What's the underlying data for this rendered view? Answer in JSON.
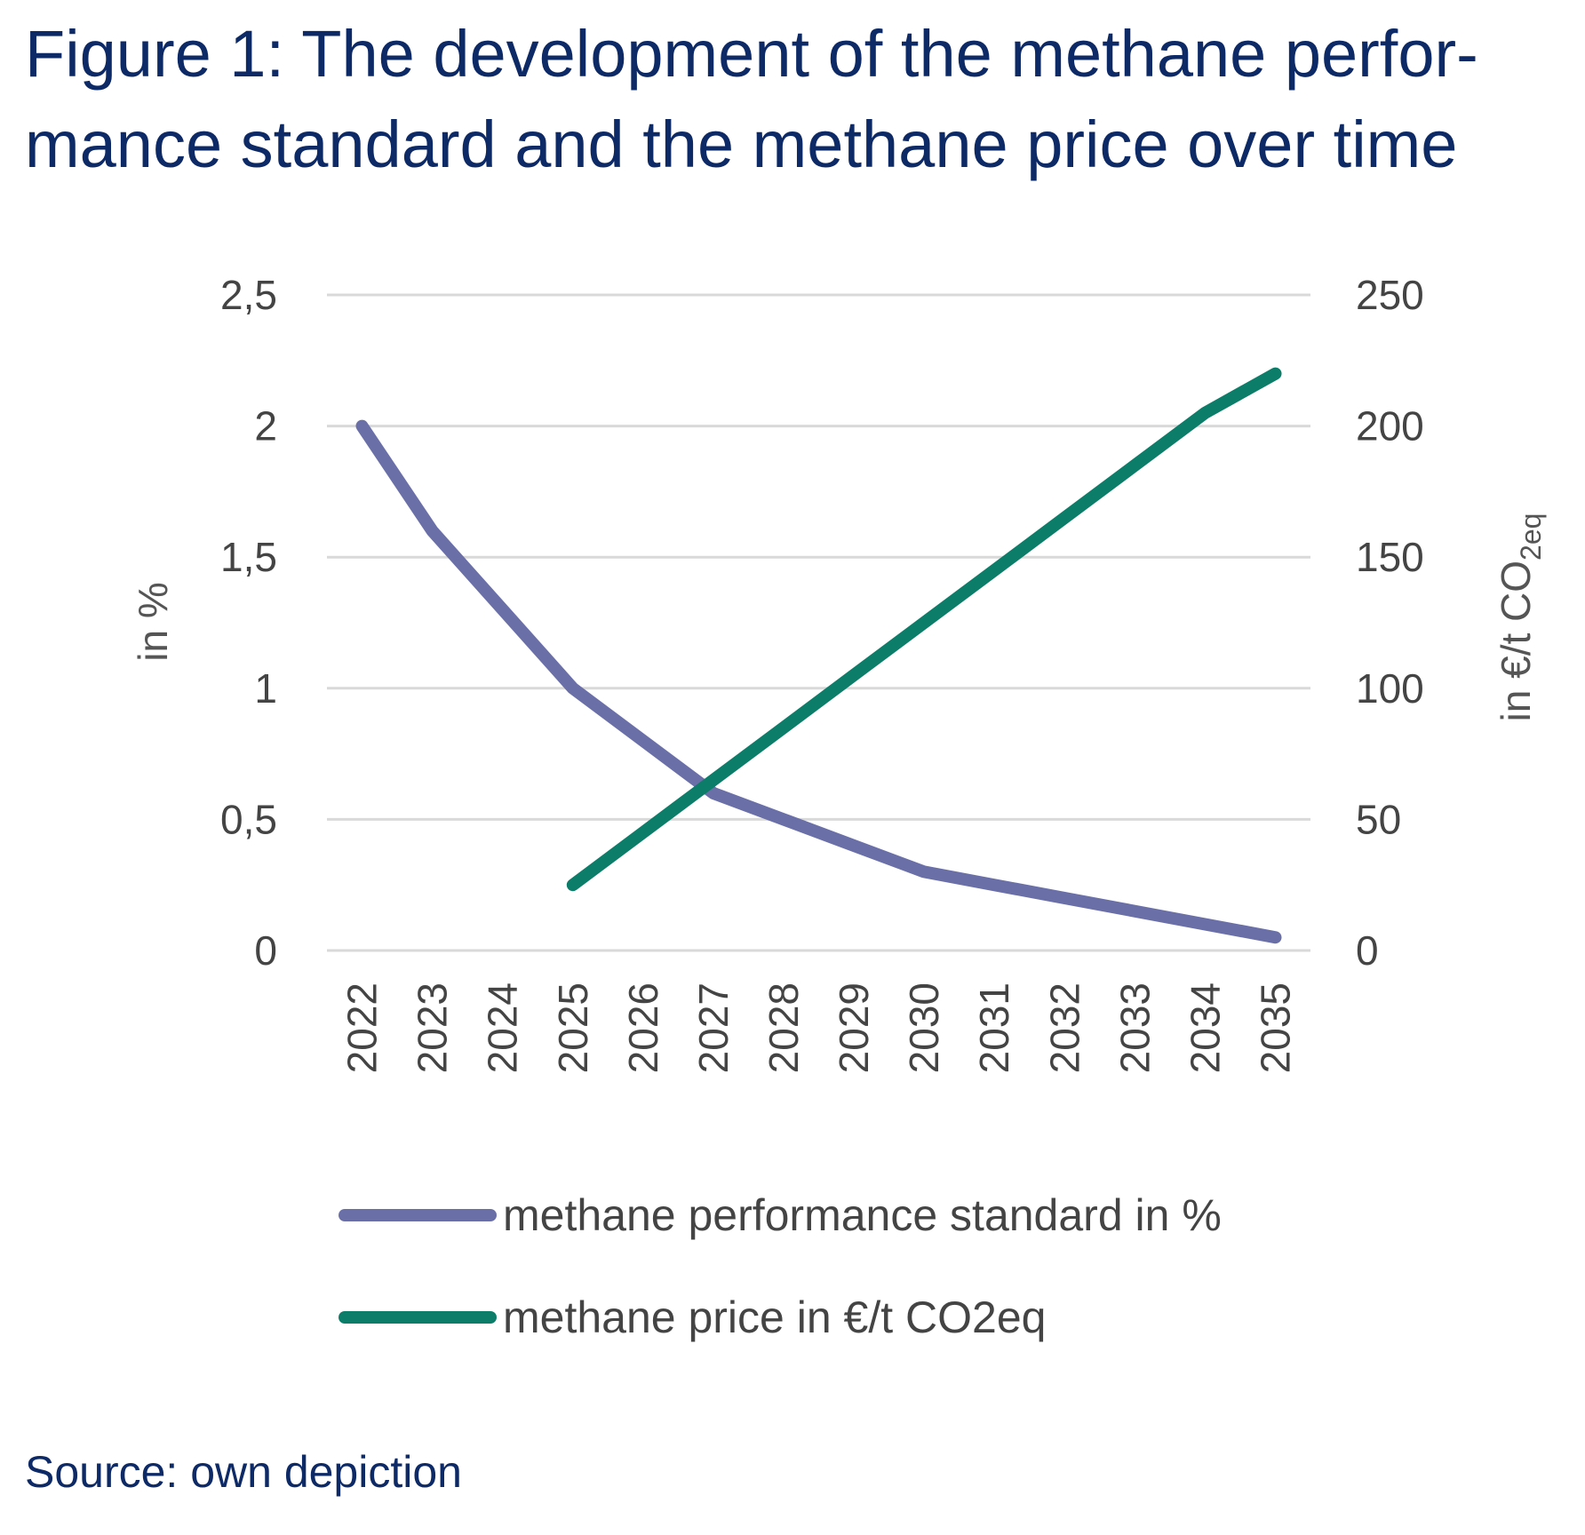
{
  "figure": {
    "title_line1": "Figure 1: The development of the methane perfor-",
    "title_line2": "mance standard and the methane price over time",
    "source": "Source: own depiction"
  },
  "chart_data": {
    "type": "line",
    "x": [
      "2022",
      "2023",
      "2024",
      "2025",
      "2026",
      "2027",
      "2028",
      "2029",
      "2030",
      "2031",
      "2032",
      "2033",
      "2034",
      "2035"
    ],
    "series": [
      {
        "name": "methane performance standard in %",
        "axis": "left",
        "color": "#6a6fa8",
        "values": [
          2.0,
          1.6,
          1.3,
          1.0,
          0.8,
          0.6,
          0.5,
          0.4,
          0.3,
          0.25,
          0.2,
          0.15,
          0.1,
          0.05
        ]
      },
      {
        "name": "methane price in €/t CO2eq",
        "axis": "right",
        "color": "#0b7d68",
        "values": [
          null,
          null,
          null,
          25,
          45,
          65,
          85,
          105,
          125,
          145,
          165,
          185,
          205,
          220
        ]
      }
    ],
    "left_axis": {
      "label": "in %",
      "ylim": [
        0,
        2.5
      ],
      "ticks": [
        "0",
        "0,5",
        "1",
        "1,5",
        "2",
        "2,5"
      ]
    },
    "right_axis": {
      "label_main": "in €/t CO",
      "label_sub": "2eq",
      "ylim": [
        0,
        250
      ],
      "ticks": [
        "0",
        "50",
        "100",
        "150",
        "200",
        "250"
      ]
    },
    "grid": true,
    "legend_position": "bottom",
    "gridline_color": "#d9d9d9"
  }
}
